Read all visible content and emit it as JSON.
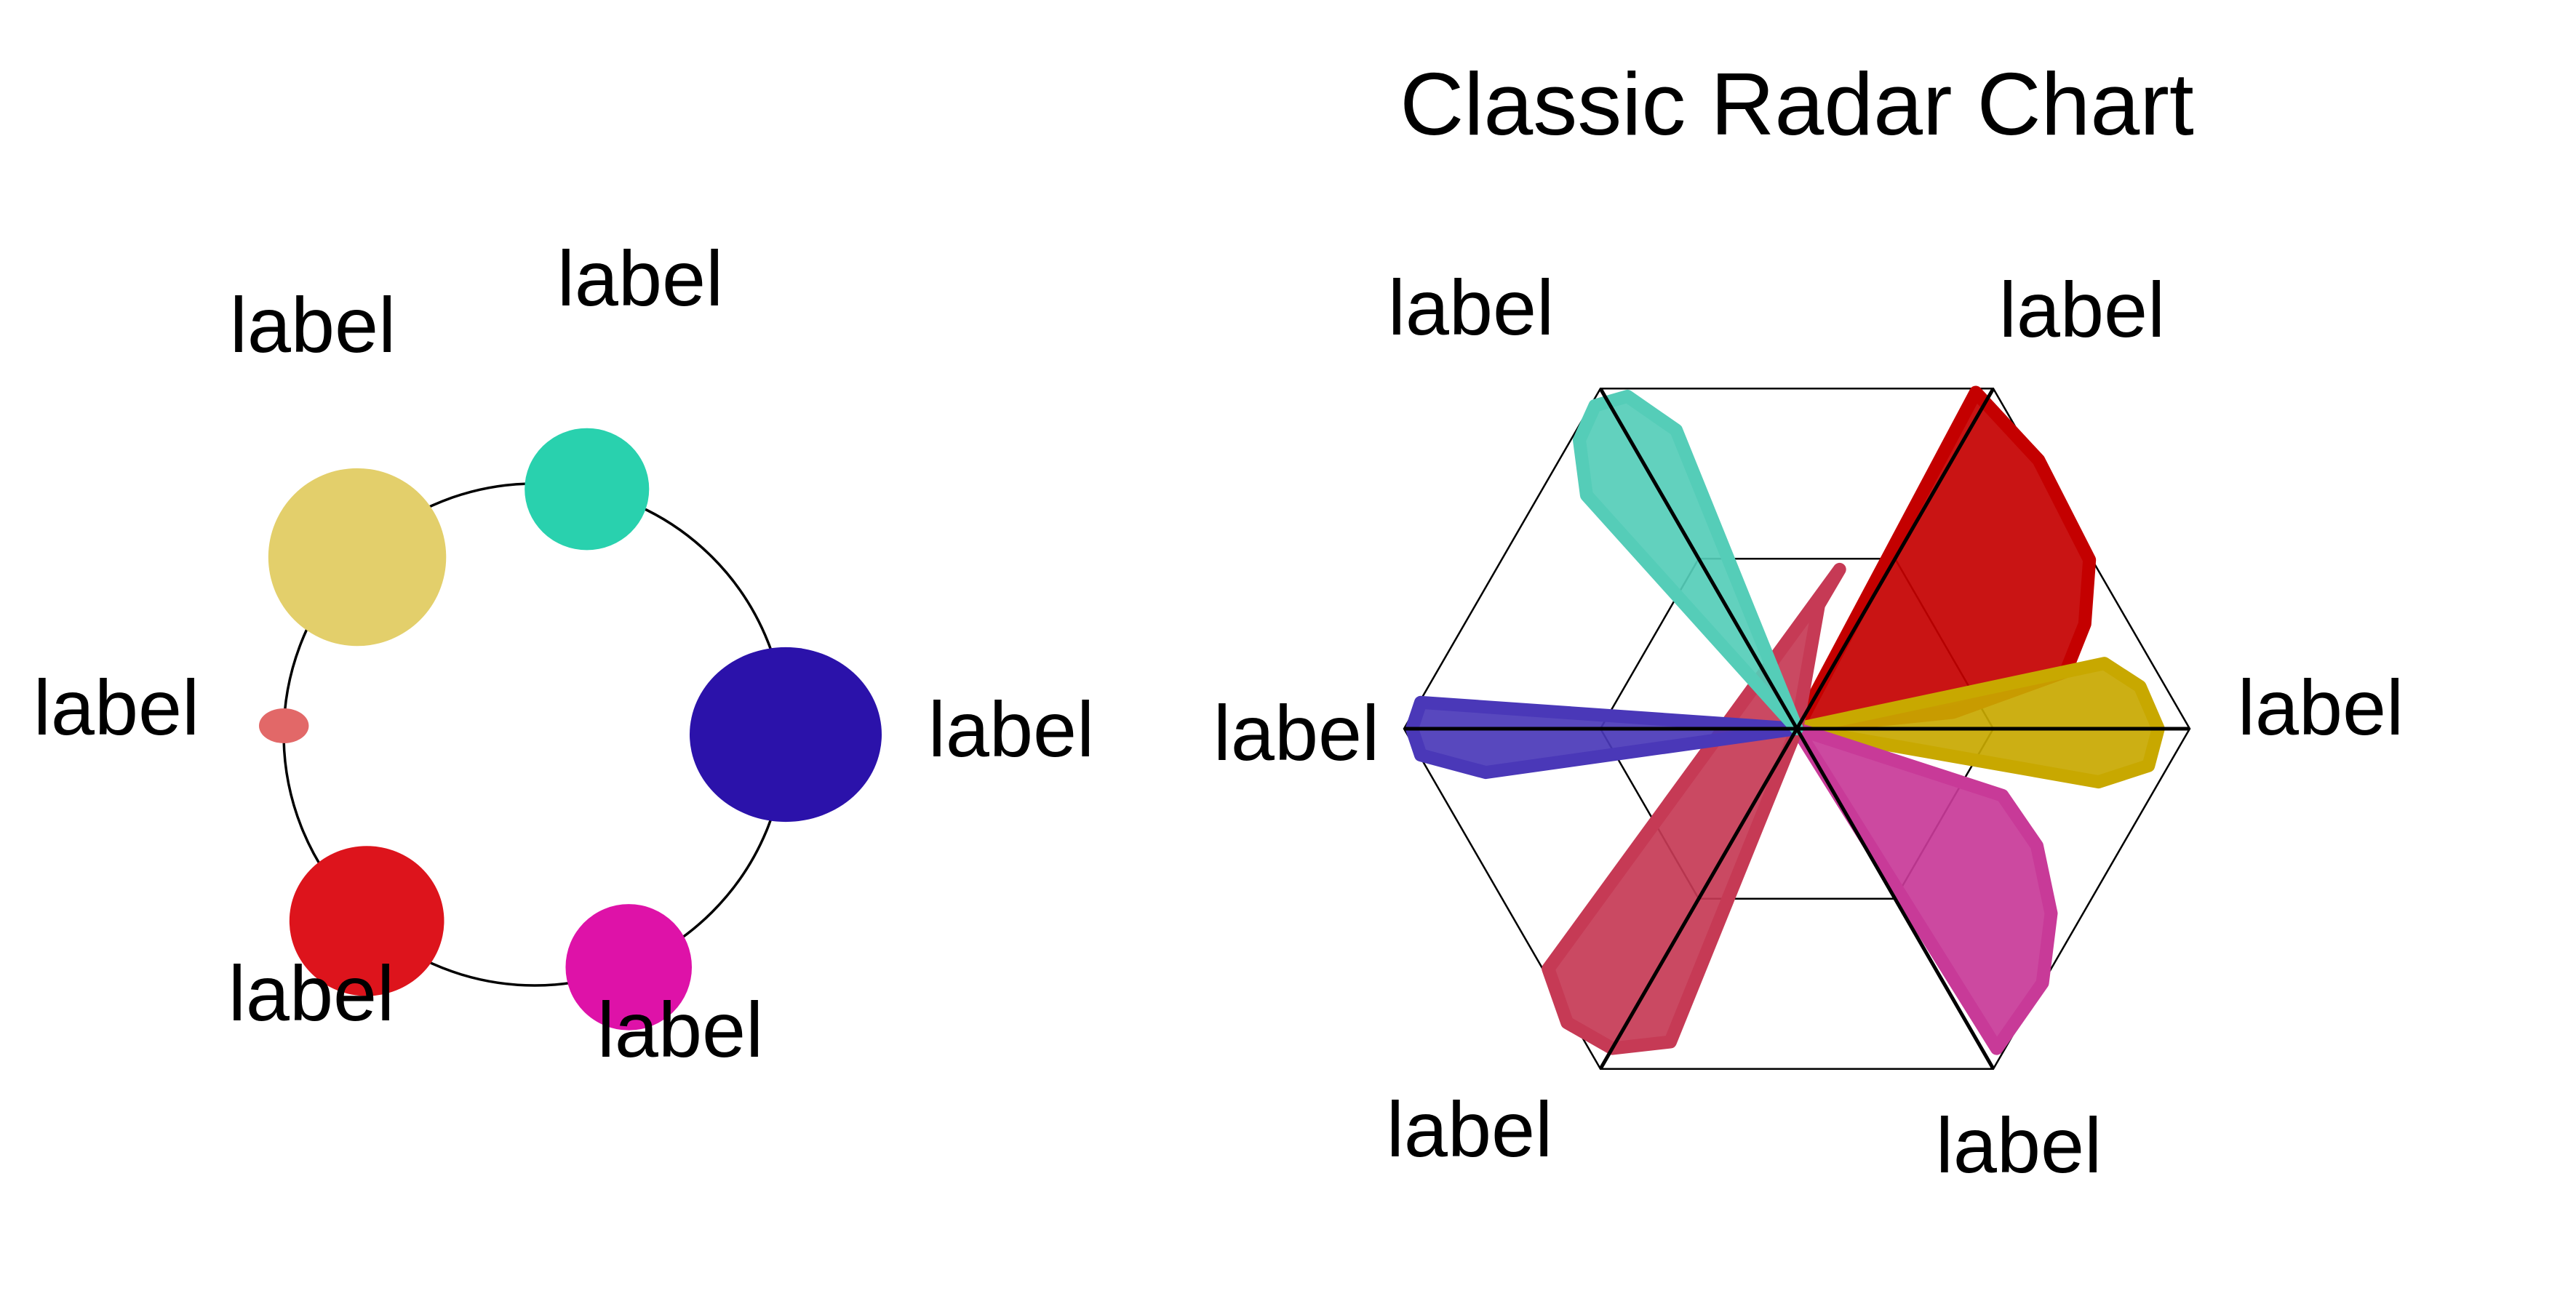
{
  "chart_data": [
    {
      "type": "scatter",
      "title": "",
      "ring": true,
      "categories": [
        "label",
        "label",
        "label",
        "label",
        "label",
        "label"
      ],
      "points": [
        {
          "label": "label",
          "value": 1.0,
          "color": "#e3cf6b"
        },
        {
          "label": "label",
          "value": 0.7,
          "color": "#29d1ae"
        },
        {
          "label": "label",
          "value": 1.08,
          "color": "#2b12aa"
        },
        {
          "label": "label",
          "value": 0.71,
          "color": "#de12a8"
        },
        {
          "label": "label",
          "value": 0.87,
          "color": "#dd141c"
        },
        {
          "label": "label",
          "value": 0.28,
          "color": "#e26868"
        }
      ]
    },
    {
      "type": "radar",
      "title": "Classic Radar Chart",
      "axes": [
        "label",
        "label",
        "label",
        "label",
        "label",
        "label"
      ],
      "axis_angles_deg": [
        120,
        60,
        0,
        -60,
        -120,
        180
      ],
      "rlim": [
        0,
        1
      ],
      "rings": [
        0.5,
        1.0
      ],
      "series": [
        {
          "color": "#c40000",
          "angles_deg": [
            62,
            48,
            30,
            20,
            12,
            6
          ],
          "r": [
            0.97,
            0.92,
            0.86,
            0.78,
            0.7,
            0.4
          ]
        },
        {
          "color": "#c8a800",
          "angles_deg": [
            12,
            7,
            0,
            -6,
            -10
          ],
          "r": [
            0.8,
            0.88,
            0.92,
            0.9,
            0.78
          ]
        },
        {
          "color": "#c83a98",
          "angles_deg": [
            -18,
            -26,
            -36,
            -46,
            -58
          ],
          "r": [
            0.55,
            0.68,
            0.8,
            0.9,
            0.96
          ]
        },
        {
          "color": "#c63a55",
          "angles_deg": [
            -112,
            -120,
            -128,
            -136,
            75,
            80
          ],
          "r": [
            0.86,
            0.94,
            0.95,
            0.88,
            0.42,
            0.32
          ]
        },
        {
          "color": "#4a38b8",
          "angles_deg": [
            176,
            180,
            184,
            188
          ],
          "r": [
            0.96,
            0.98,
            0.96,
            0.8
          ]
        },
        {
          "color": "#55cdb8",
          "angles_deg": [
            112,
            117,
            122,
            127,
            132
          ],
          "r": [
            0.82,
            0.95,
            0.97,
            0.92,
            0.8
          ]
        }
      ]
    }
  ]
}
